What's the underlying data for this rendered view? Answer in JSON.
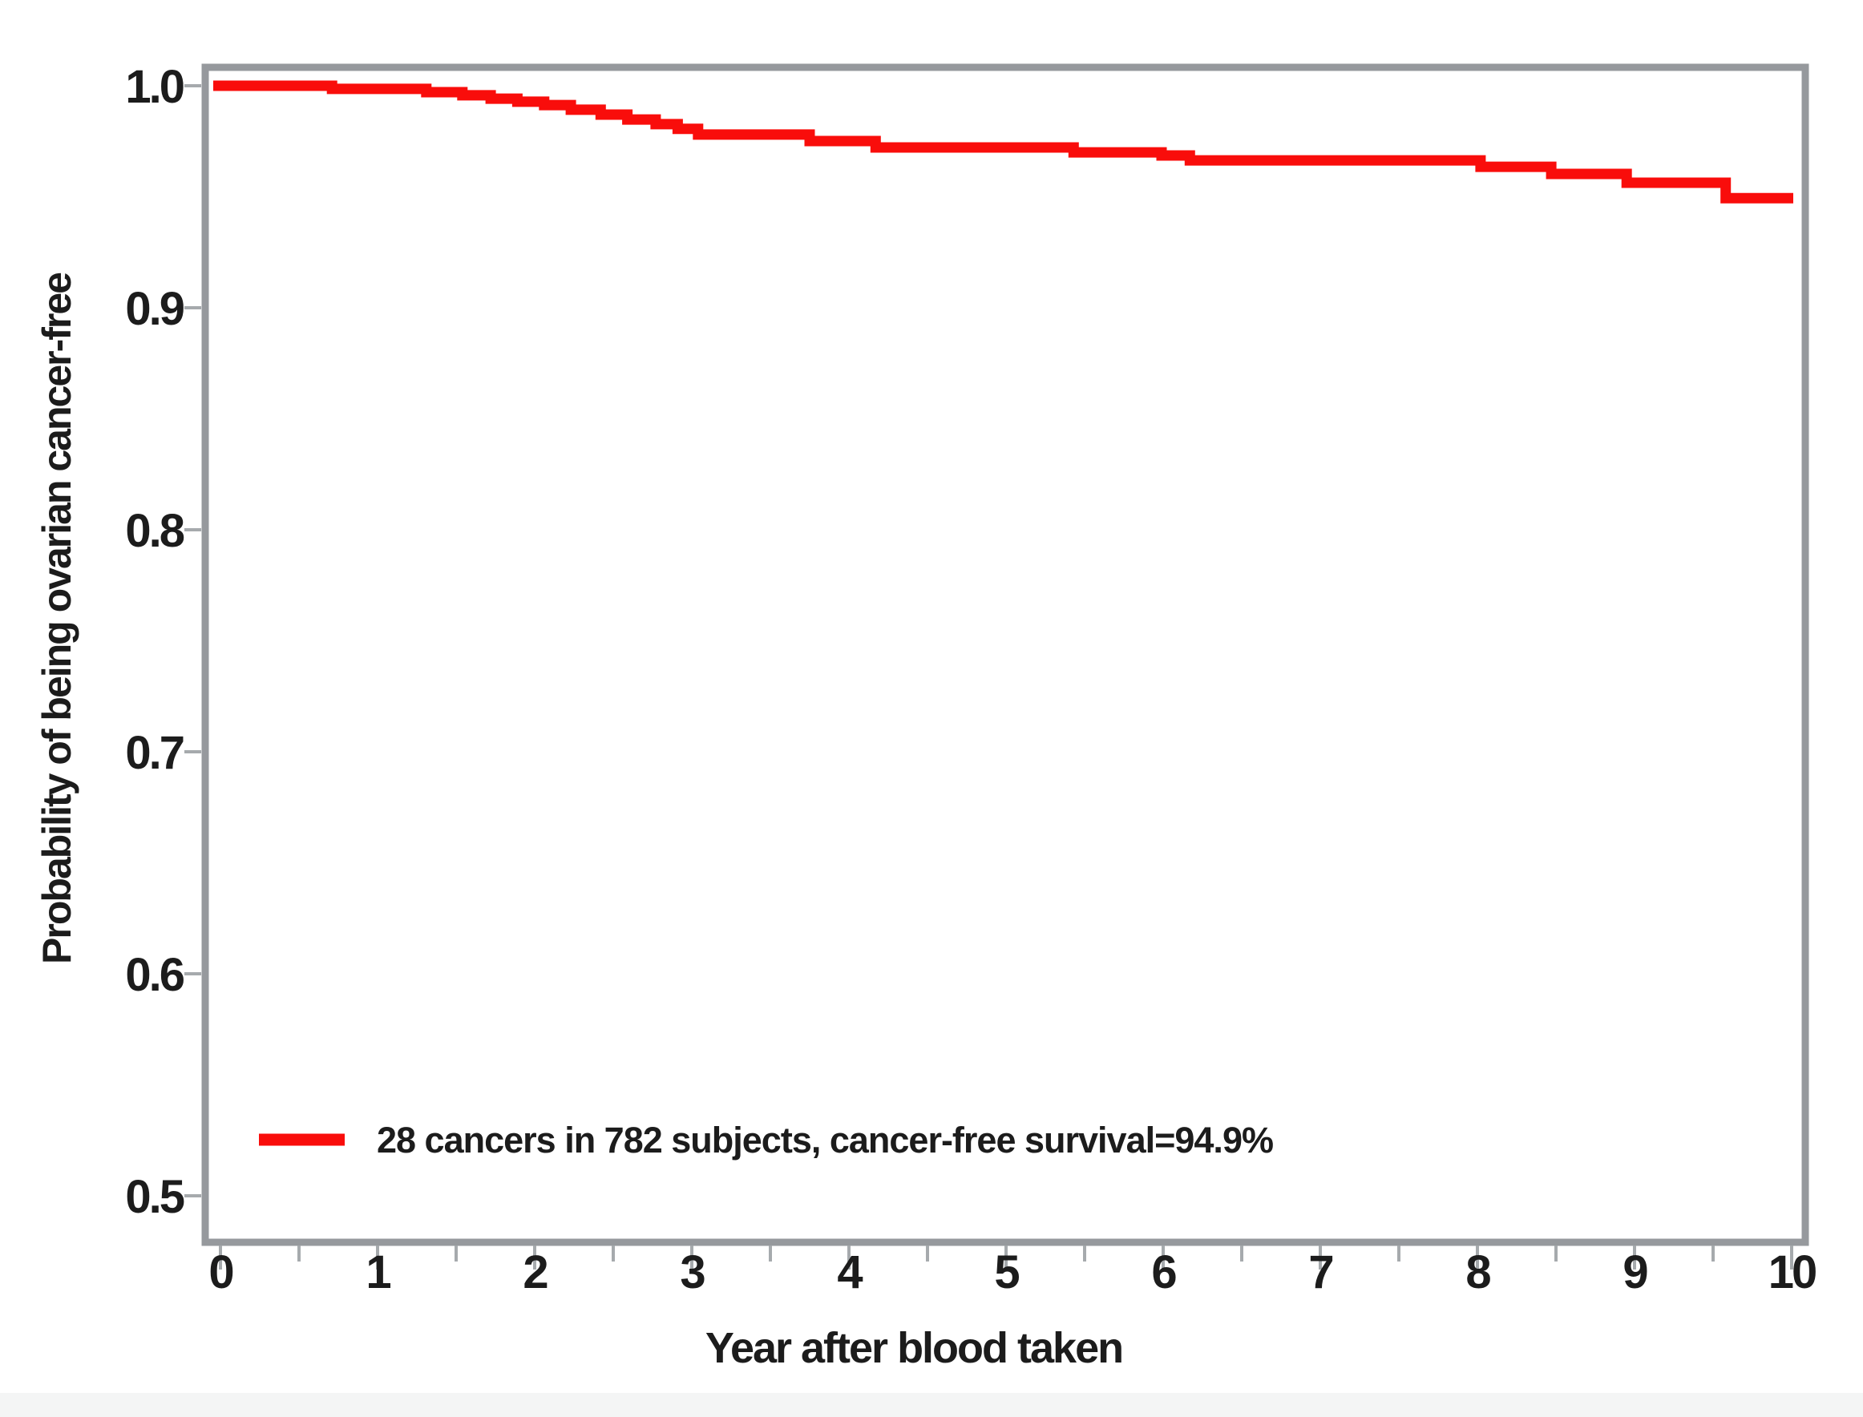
{
  "page": {
    "background": "#ffffff",
    "bottom_strip_color": "#f4f5f5"
  },
  "chart_data": {
    "type": "line",
    "subtype": "kaplan_meier_step",
    "title": "",
    "xlabel": "Year after blood taken",
    "ylabel": "Probability of being ovarian cancer-free",
    "xlim": [
      0,
      10
    ],
    "ylim": [
      0.5,
      1.0
    ],
    "x_ticks": [
      0,
      1,
      2,
      3,
      4,
      5,
      6,
      7,
      8,
      9,
      10
    ],
    "x_tick_labels": [
      "0",
      "1",
      "2",
      "3",
      "4",
      "5",
      "6",
      "7",
      "8",
      "9",
      "10"
    ],
    "x_minor_tick_step": 0.5,
    "y_ticks": [
      1.0,
      0.9,
      0.8,
      0.7,
      0.6,
      0.5
    ],
    "y_tick_labels": [
      "1.0",
      "0.9",
      "0.8",
      "0.7",
      "0.6",
      "0.5"
    ],
    "grid": false,
    "frame_color": "#96999d",
    "tick_color": "#a6aaad",
    "text_color": "#1c1c1c",
    "legend": {
      "position": "inside-bottom-left",
      "label": "28 cancers in 782 subjects, cancer-free survival=94.9%",
      "n_events": 28,
      "n_subjects": 782,
      "cancer_free_survival": "94.9%",
      "line_color": "#f90d0b"
    },
    "series": [
      {
        "name": "ovarian cancer-free survival",
        "color": "#f90d0b",
        "start": [
          0.0,
          1.0
        ],
        "km_steps": [
          [
            0.71,
            0.9986
          ],
          [
            1.31,
            0.9971
          ],
          [
            1.54,
            0.9957
          ],
          [
            1.72,
            0.9942
          ],
          [
            1.89,
            0.9928
          ],
          [
            2.06,
            0.9913
          ],
          [
            2.23,
            0.9892
          ],
          [
            2.42,
            0.987
          ],
          [
            2.59,
            0.9848
          ],
          [
            2.77,
            0.9827
          ],
          [
            2.91,
            0.9806
          ],
          [
            3.04,
            0.978
          ],
          [
            3.75,
            0.9751
          ],
          [
            4.17,
            0.9722
          ],
          [
            5.43,
            0.97
          ],
          [
            5.99,
            0.9686
          ],
          [
            6.17,
            0.9664
          ],
          [
            8.02,
            0.9635
          ],
          [
            8.47,
            0.9603
          ],
          [
            8.95,
            0.9563
          ],
          [
            9.58,
            0.9494
          ]
        ],
        "end_time": 10.0,
        "final_survival": 0.949
      }
    ]
  }
}
